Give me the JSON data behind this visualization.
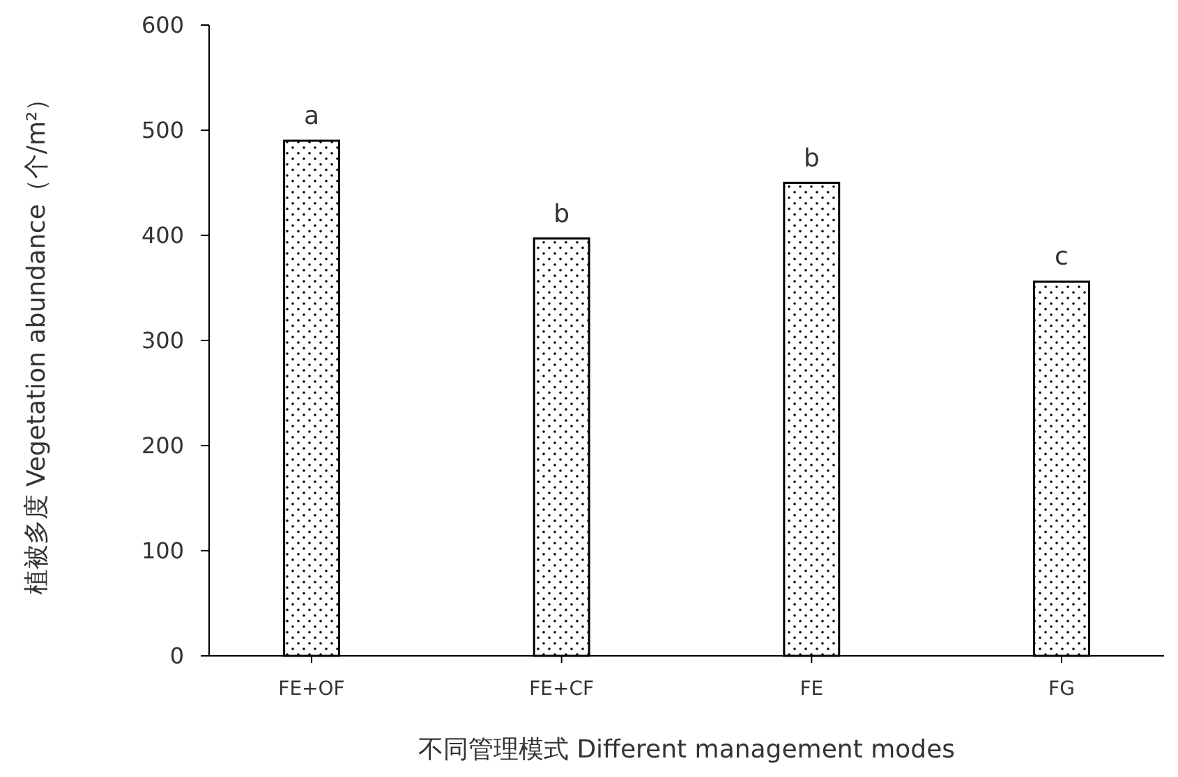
{
  "chart_data": {
    "type": "bar",
    "xlabel": "不同管理模式  Different management modes",
    "ylabel": "植被多度 Vegetation abundance（个/m²）",
    "categories": [
      "FE+OF",
      "FE+CF",
      "FE",
      "FG"
    ],
    "values": [
      490,
      397,
      450,
      356
    ],
    "color": "#ffffff",
    "ylim": [
      0,
      600
    ],
    "yticks": [
      0,
      100,
      200,
      300,
      400,
      500,
      600
    ],
    "grid": false,
    "annotations": [
      {
        "text": "a",
        "x": "FE+OF",
        "y": 490
      },
      {
        "text": "b",
        "x": "FE+CF",
        "y": 397
      },
      {
        "text": "b",
        "x": "FE",
        "y": 450
      },
      {
        "text": "c",
        "x": "FG",
        "y": 356
      }
    ]
  }
}
